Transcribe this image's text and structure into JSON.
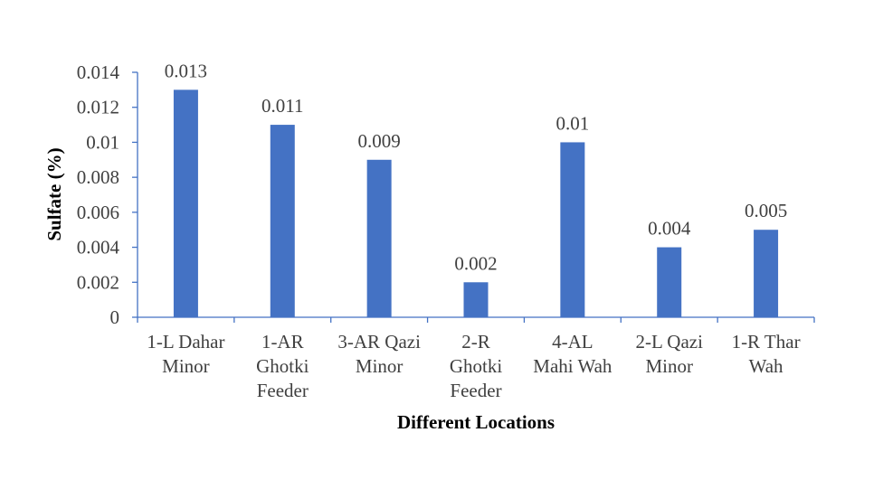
{
  "chart_data": {
    "type": "bar",
    "title": "",
    "xlabel": "Different Locations",
    "ylabel": "Sulfate (%)",
    "categories": [
      [
        "1-L Dahar",
        "Minor"
      ],
      [
        "1-AR",
        "Ghotki",
        "Feeder"
      ],
      [
        "3-AR Qazi",
        "Minor"
      ],
      [
        "2-R",
        "Ghotki",
        "Feeder"
      ],
      [
        "4-AL",
        "Mahi Wah"
      ],
      [
        "2-L Qazi",
        "Minor"
      ],
      [
        "1-R Thar",
        "Wah"
      ]
    ],
    "values": [
      0.013,
      0.011,
      0.009,
      0.002,
      0.01,
      0.004,
      0.005
    ],
    "data_labels": [
      "0.013",
      "0.011",
      "0.009",
      "0.002",
      "0.01",
      "0.004",
      "0.005"
    ],
    "ylim": [
      0,
      0.014
    ],
    "yticks": [
      0,
      0.002,
      0.004,
      0.006,
      0.008,
      0.01,
      0.012,
      0.014
    ],
    "ytick_labels": [
      "0",
      "0.002",
      "0.004",
      "0.006",
      "0.008",
      "0.01",
      "0.012",
      "0.014"
    ],
    "grid": false,
    "legend": "none",
    "bar_color": "#4472c4",
    "axis_color": "#4472c4"
  }
}
